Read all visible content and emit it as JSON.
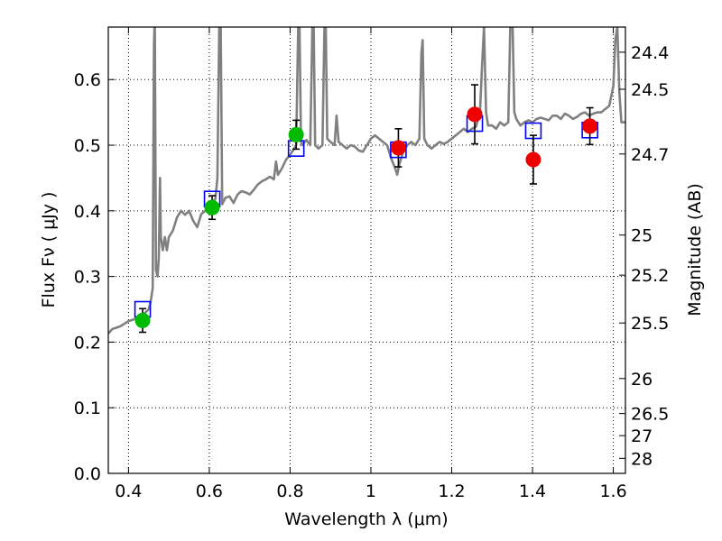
{
  "chart_data": {
    "type": "scatter",
    "xlabel": "Wavelength  λ (μm)",
    "ylabel": "Flux  Fν  ( μJy )",
    "ylabel_right": "Magnitude (AB)",
    "xlim": [
      0.35,
      1.63
    ],
    "ylim": [
      0.0,
      0.68
    ],
    "grid": true,
    "x_ticks": [
      {
        "value": 0.4,
        "label": "0.4"
      },
      {
        "value": 0.6,
        "label": "0.6"
      },
      {
        "value": 0.8,
        "label": "0.8"
      },
      {
        "value": 1.0,
        "label": "1"
      },
      {
        "value": 1.2,
        "label": "1.2"
      },
      {
        "value": 1.4,
        "label": "1.4"
      },
      {
        "value": 1.6,
        "label": "1.6"
      }
    ],
    "y_ticks": [
      {
        "value": 0.0,
        "label": "0.0"
      },
      {
        "value": 0.1,
        "label": "0.1"
      },
      {
        "value": 0.2,
        "label": "0.2"
      },
      {
        "value": 0.3,
        "label": "0.3"
      },
      {
        "value": 0.4,
        "label": "0.4"
      },
      {
        "value": 0.5,
        "label": "0.5"
      },
      {
        "value": 0.6,
        "label": "0.6"
      }
    ],
    "right_ticks": [
      {
        "flux": 0.6417,
        "label": "24.4"
      },
      {
        "flux": 0.5852,
        "label": "24.5"
      },
      {
        "flux": 0.4866,
        "label": "24.7"
      },
      {
        "flux": 0.3631,
        "label": "25"
      },
      {
        "flux": 0.302,
        "label": "25.2"
      },
      {
        "flux": 0.2291,
        "label": "25.5"
      },
      {
        "flux": 0.1445,
        "label": "26"
      },
      {
        "flux": 0.0912,
        "label": "26.5"
      },
      {
        "flux": 0.0575,
        "label": "27"
      },
      {
        "flux": 0.0229,
        "label": "28"
      }
    ],
    "colors": {
      "spectrum": "#808080",
      "model": "#0000ff",
      "green": "#00bb00",
      "red": "#ee0000",
      "errorbar": "#000000",
      "grid": "#000000"
    },
    "spectrum": [
      [
        0.35,
        0.213
      ],
      [
        0.36,
        0.22
      ],
      [
        0.37,
        0.222
      ],
      [
        0.38,
        0.224
      ],
      [
        0.39,
        0.228
      ],
      [
        0.4,
        0.232
      ],
      [
        0.41,
        0.234
      ],
      [
        0.42,
        0.236
      ],
      [
        0.43,
        0.24
      ],
      [
        0.44,
        0.244
      ],
      [
        0.45,
        0.25
      ],
      [
        0.455,
        0.262
      ],
      [
        0.46,
        0.282
      ],
      [
        0.463,
        0.65
      ],
      [
        0.465,
        0.7
      ],
      [
        0.468,
        0.31
      ],
      [
        0.472,
        0.3
      ],
      [
        0.475,
        0.33
      ],
      [
        0.478,
        0.45
      ],
      [
        0.48,
        0.36
      ],
      [
        0.485,
        0.34
      ],
      [
        0.49,
        0.36
      ],
      [
        0.495,
        0.34
      ],
      [
        0.5,
        0.36
      ],
      [
        0.51,
        0.37
      ],
      [
        0.52,
        0.39
      ],
      [
        0.53,
        0.4
      ],
      [
        0.54,
        0.394
      ],
      [
        0.55,
        0.4
      ],
      [
        0.56,
        0.385
      ],
      [
        0.57,
        0.375
      ],
      [
        0.58,
        0.395
      ],
      [
        0.59,
        0.4
      ],
      [
        0.6,
        0.408
      ],
      [
        0.61,
        0.415
      ],
      [
        0.615,
        0.418
      ],
      [
        0.62,
        0.45
      ],
      [
        0.625,
        0.7
      ],
      [
        0.628,
        0.71
      ],
      [
        0.632,
        0.41
      ],
      [
        0.64,
        0.42
      ],
      [
        0.65,
        0.422
      ],
      [
        0.66,
        0.412
      ],
      [
        0.67,
        0.425
      ],
      [
        0.68,
        0.43
      ],
      [
        0.69,
        0.428
      ],
      [
        0.7,
        0.425
      ],
      [
        0.71,
        0.432
      ],
      [
        0.72,
        0.44
      ],
      [
        0.73,
        0.445
      ],
      [
        0.74,
        0.448
      ],
      [
        0.75,
        0.452
      ],
      [
        0.76,
        0.448
      ],
      [
        0.765,
        0.475
      ],
      [
        0.77,
        0.455
      ],
      [
        0.78,
        0.465
      ],
      [
        0.79,
        0.478
      ],
      [
        0.8,
        0.485
      ],
      [
        0.81,
        0.495
      ],
      [
        0.815,
        0.5
      ],
      [
        0.82,
        0.68
      ],
      [
        0.823,
        0.7
      ],
      [
        0.827,
        0.505
      ],
      [
        0.83,
        0.5
      ],
      [
        0.84,
        0.508
      ],
      [
        0.85,
        0.5
      ],
      [
        0.855,
        0.68
      ],
      [
        0.858,
        0.7
      ],
      [
        0.862,
        0.5
      ],
      [
        0.87,
        0.495
      ],
      [
        0.88,
        0.5
      ],
      [
        0.885,
        0.68
      ],
      [
        0.888,
        0.7
      ],
      [
        0.892,
        0.51
      ],
      [
        0.9,
        0.505
      ],
      [
        0.91,
        0.5
      ],
      [
        0.915,
        0.545
      ],
      [
        0.92,
        0.505
      ],
      [
        0.93,
        0.5
      ],
      [
        0.94,
        0.495
      ],
      [
        0.95,
        0.5
      ],
      [
        0.96,
        0.498
      ],
      [
        0.97,
        0.492
      ],
      [
        0.98,
        0.49
      ],
      [
        0.99,
        0.5
      ],
      [
        1.0,
        0.51
      ],
      [
        1.01,
        0.515
      ],
      [
        1.02,
        0.51
      ],
      [
        1.03,
        0.505
      ],
      [
        1.04,
        0.5
      ],
      [
        1.05,
        0.48
      ],
      [
        1.06,
        0.465
      ],
      [
        1.065,
        0.455
      ],
      [
        1.07,
        0.47
      ],
      [
        1.08,
        0.49
      ],
      [
        1.09,
        0.5
      ],
      [
        1.1,
        0.505
      ],
      [
        1.11,
        0.5
      ],
      [
        1.12,
        0.51
      ],
      [
        1.125,
        0.64
      ],
      [
        1.128,
        0.66
      ],
      [
        1.132,
        0.51
      ],
      [
        1.14,
        0.5
      ],
      [
        1.15,
        0.495
      ],
      [
        1.16,
        0.5
      ],
      [
        1.17,
        0.505
      ],
      [
        1.18,
        0.502
      ],
      [
        1.19,
        0.505
      ],
      [
        1.2,
        0.51
      ],
      [
        1.21,
        0.515
      ],
      [
        1.22,
        0.52
      ],
      [
        1.23,
        0.525
      ],
      [
        1.24,
        0.52
      ],
      [
        1.25,
        0.525
      ],
      [
        1.26,
        0.528
      ],
      [
        1.27,
        0.55
      ],
      [
        1.275,
        0.62
      ],
      [
        1.28,
        0.68
      ],
      [
        1.285,
        0.55
      ],
      [
        1.29,
        0.53
      ],
      [
        1.3,
        0.53
      ],
      [
        1.31,
        0.525
      ],
      [
        1.32,
        0.535
      ],
      [
        1.33,
        0.53
      ],
      [
        1.34,
        0.535
      ],
      [
        1.345,
        0.68
      ],
      [
        1.35,
        0.7
      ],
      [
        1.355,
        0.55
      ],
      [
        1.36,
        0.54
      ],
      [
        1.37,
        0.53
      ],
      [
        1.38,
        0.535
      ],
      [
        1.39,
        0.538
      ],
      [
        1.4,
        0.535
      ],
      [
        1.41,
        0.54
      ],
      [
        1.42,
        0.542
      ],
      [
        1.43,
        0.54
      ],
      [
        1.44,
        0.538
      ],
      [
        1.45,
        0.545
      ],
      [
        1.46,
        0.545
      ],
      [
        1.47,
        0.54
      ],
      [
        1.48,
        0.548
      ],
      [
        1.49,
        0.545
      ],
      [
        1.5,
        0.54
      ],
      [
        1.51,
        0.543
      ],
      [
        1.52,
        0.548
      ],
      [
        1.53,
        0.55
      ],
      [
        1.54,
        0.545
      ],
      [
        1.55,
        0.548
      ],
      [
        1.56,
        0.55
      ],
      [
        1.57,
        0.55
      ],
      [
        1.58,
        0.555
      ],
      [
        1.59,
        0.56
      ],
      [
        1.6,
        0.59
      ],
      [
        1.605,
        0.66
      ],
      [
        1.61,
        0.68
      ],
      [
        1.615,
        0.58
      ],
      [
        1.62,
        0.535
      ],
      [
        1.63,
        0.535
      ]
    ],
    "model_points": [
      {
        "x": 0.435,
        "y": 0.25
      },
      {
        "x": 0.607,
        "y": 0.418
      },
      {
        "x": 0.815,
        "y": 0.495
      },
      {
        "x": 1.068,
        "y": 0.493
      },
      {
        "x": 1.257,
        "y": 0.533
      },
      {
        "x": 1.402,
        "y": 0.522
      },
      {
        "x": 1.542,
        "y": 0.523
      }
    ],
    "green_points": [
      {
        "x": 0.435,
        "y": 0.233,
        "err": 0.018
      },
      {
        "x": 0.607,
        "y": 0.405,
        "err": 0.018
      },
      {
        "x": 0.815,
        "y": 0.516,
        "err": 0.022
      }
    ],
    "red_points": [
      {
        "x": 1.068,
        "y": 0.496,
        "err": 0.029
      },
      {
        "x": 1.257,
        "y": 0.547,
        "err": 0.045
      },
      {
        "x": 1.402,
        "y": 0.478,
        "err": 0.037
      },
      {
        "x": 1.542,
        "y": 0.529,
        "err": 0.028
      }
    ]
  }
}
